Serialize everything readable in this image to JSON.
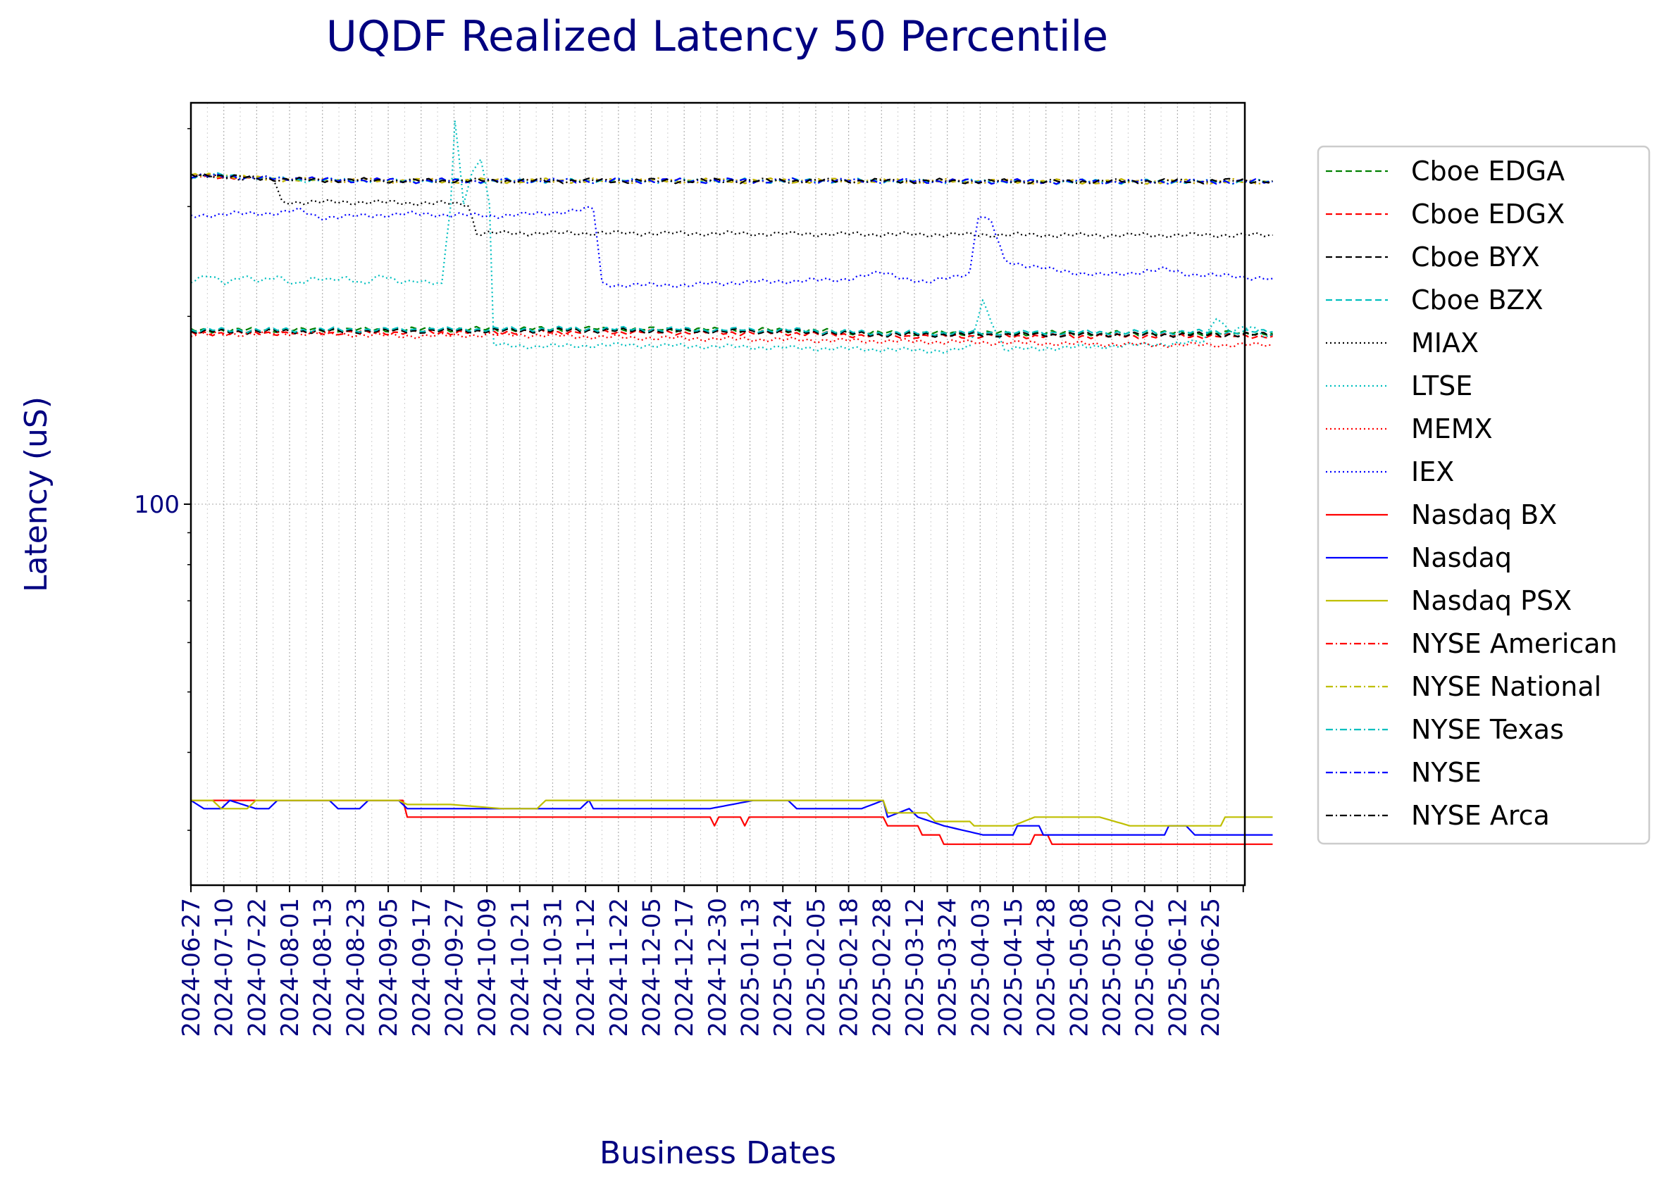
{
  "chart_data": {
    "type": "line",
    "title": "UQDF Realized Latency 50 Percentile",
    "xlabel": "Business Dates",
    "ylabel": "Latency (uS)",
    "yscale": "log",
    "ylim": [
      24.5,
      440
    ],
    "y_ticklabels": [
      {
        "value": 100,
        "label": "100"
      }
    ],
    "grid": true,
    "legend_position": "right-outside",
    "x_ticklabels": [
      "2024-06-27",
      "2024-07-10",
      "2024-07-22",
      "2024-08-01",
      "2024-08-13",
      "2024-08-23",
      "2024-09-05",
      "2024-09-17",
      "2024-09-27",
      "2024-10-09",
      "2024-10-21",
      "2024-10-31",
      "2024-11-12",
      "2024-11-22",
      "2024-12-05",
      "2024-12-17",
      "2024-12-30",
      "2025-01-13",
      "2025-01-24",
      "2025-02-05",
      "2025-02-18",
      "2025-02-28",
      "2025-03-12",
      "2025-03-24",
      "2025-04-03",
      "2025-04-15",
      "2025-04-28",
      "2025-05-08",
      "2025-05-20",
      "2025-06-02",
      "2025-06-12",
      "2025-06-25"
    ],
    "series": [
      {
        "name": "Cboe EDGA",
        "color": "#008000",
        "style": "dashed",
        "points": [
          [
            0,
            190
          ],
          [
            90,
            191
          ],
          [
            140,
            190
          ],
          [
            160,
            188
          ],
          [
            250,
            188
          ]
        ]
      },
      {
        "name": "Cboe EDGX",
        "color": "#ff0000",
        "style": "dashed",
        "points": [
          [
            0,
            188
          ],
          [
            90,
            189
          ],
          [
            140,
            188
          ],
          [
            160,
            186
          ],
          [
            250,
            186
          ]
        ]
      },
      {
        "name": "Cboe BYX",
        "color": "#000000",
        "style": "dashed",
        "points": [
          [
            0,
            189
          ],
          [
            90,
            190
          ],
          [
            140,
            189
          ],
          [
            160,
            187
          ],
          [
            250,
            187
          ]
        ]
      },
      {
        "name": "Cboe BZX",
        "color": "#00bfbf",
        "style": "dashed",
        "points": [
          [
            0,
            190
          ],
          [
            90,
            191
          ],
          [
            140,
            190
          ],
          [
            160,
            188
          ],
          [
            250,
            189
          ]
        ]
      },
      {
        "name": "MIAX",
        "color": "#000000",
        "style": "dotted",
        "points": [
          [
            0,
            335
          ],
          [
            19,
            333
          ],
          [
            21,
            305
          ],
          [
            40,
            305
          ],
          [
            64,
            303
          ],
          [
            66,
            272
          ],
          [
            100,
            272
          ],
          [
            200,
            270
          ],
          [
            250,
            270
          ]
        ]
      },
      {
        "name": "LTSE",
        "color": "#00bfbf",
        "style": "dotted",
        "points": [
          [
            0,
            228
          ],
          [
            4,
            232
          ],
          [
            8,
            226
          ],
          [
            12,
            233
          ],
          [
            16,
            227
          ],
          [
            20,
            231
          ],
          [
            24,
            226
          ],
          [
            28,
            230
          ],
          [
            32,
            228
          ],
          [
            36,
            231
          ],
          [
            40,
            226
          ],
          [
            44,
            232
          ],
          [
            48,
            227
          ],
          [
            52,
            229
          ],
          [
            56,
            226
          ],
          [
            58,
            224
          ],
          [
            60,
            300
          ],
          [
            61,
            410
          ],
          [
            63,
            305
          ],
          [
            65,
            340
          ],
          [
            67,
            360
          ],
          [
            69,
            300
          ],
          [
            70,
            180
          ],
          [
            80,
            179
          ],
          [
            100,
            180
          ],
          [
            120,
            179
          ],
          [
            140,
            178
          ],
          [
            160,
            177
          ],
          [
            175,
            176
          ],
          [
            180,
            178
          ],
          [
            183,
            212
          ],
          [
            186,
            190
          ],
          [
            188,
            177
          ],
          [
            200,
            178
          ],
          [
            220,
            180
          ],
          [
            234,
            182
          ],
          [
            237,
            200
          ],
          [
            240,
            190
          ],
          [
            245,
            192
          ],
          [
            248,
            186
          ],
          [
            250,
            187
          ]
        ]
      },
      {
        "name": "MEMX",
        "color": "#ff0000",
        "style": "dotted",
        "points": [
          [
            0,
            187
          ],
          [
            25,
            188
          ],
          [
            50,
            186
          ],
          [
            75,
            187
          ],
          [
            100,
            185
          ],
          [
            125,
            184
          ],
          [
            150,
            183
          ],
          [
            175,
            182
          ],
          [
            200,
            181
          ],
          [
            225,
            180
          ],
          [
            250,
            180
          ]
        ]
      },
      {
        "name": "IEX",
        "color": "#0000ff",
        "style": "dotted",
        "points": [
          [
            0,
            290
          ],
          [
            10,
            292
          ],
          [
            20,
            293
          ],
          [
            25,
            296
          ],
          [
            30,
            288
          ],
          [
            40,
            290
          ],
          [
            50,
            292
          ],
          [
            60,
            291
          ],
          [
            70,
            290
          ],
          [
            80,
            292
          ],
          [
            90,
            296
          ],
          [
            93,
            298
          ],
          [
            95,
            226
          ],
          [
            100,
            224
          ],
          [
            110,
            225
          ],
          [
            115,
            224
          ],
          [
            120,
            226
          ],
          [
            130,
            227
          ],
          [
            140,
            228
          ],
          [
            150,
            229
          ],
          [
            160,
            235
          ],
          [
            170,
            226
          ],
          [
            175,
            231
          ],
          [
            180,
            235
          ],
          [
            182,
            290
          ],
          [
            185,
            283
          ],
          [
            188,
            246
          ],
          [
            190,
            244
          ],
          [
            195,
            240
          ],
          [
            200,
            237
          ],
          [
            210,
            233
          ],
          [
            215,
            234
          ],
          [
            220,
            236
          ],
          [
            225,
            238
          ],
          [
            230,
            234
          ],
          [
            235,
            233
          ],
          [
            240,
            232
          ],
          [
            245,
            231
          ],
          [
            250,
            230
          ]
        ]
      },
      {
        "name": "Nasdaq BX",
        "color": "#ff0000",
        "style": "solid",
        "points": [
          [
            0,
            33.5
          ],
          [
            49,
            33.5
          ],
          [
            50,
            31.5
          ],
          [
            120,
            31.5
          ],
          [
            121,
            30.5
          ],
          [
            122,
            31.5
          ],
          [
            127,
            31.5
          ],
          [
            128,
            30.5
          ],
          [
            129,
            31.5
          ],
          [
            160,
            31.5
          ],
          [
            161,
            30.5
          ],
          [
            168,
            30.5
          ],
          [
            169,
            29.5
          ],
          [
            173,
            29.5
          ],
          [
            174,
            28.5
          ],
          [
            194,
            28.5
          ],
          [
            195,
            29.5
          ],
          [
            198,
            29.5
          ],
          [
            199,
            28.5
          ],
          [
            250,
            28.5
          ]
        ]
      },
      {
        "name": "Nasdaq",
        "color": "#0000ff",
        "style": "solid",
        "points": [
          [
            0,
            33.5
          ],
          [
            3,
            32.5
          ],
          [
            7,
            32.5
          ],
          [
            9,
            33.5
          ],
          [
            15,
            32.5
          ],
          [
            18,
            32.5
          ],
          [
            20,
            33.5
          ],
          [
            32,
            33.5
          ],
          [
            34,
            32.5
          ],
          [
            39,
            32.5
          ],
          [
            41,
            33.5
          ],
          [
            48,
            33.5
          ],
          [
            50,
            32.5
          ],
          [
            60,
            32.5
          ],
          [
            90,
            32.5
          ],
          [
            92,
            33.5
          ],
          [
            93,
            32.5
          ],
          [
            120,
            32.5
          ],
          [
            130,
            33.5
          ],
          [
            138,
            33.5
          ],
          [
            140,
            32.5
          ],
          [
            150,
            32.5
          ],
          [
            155,
            32.5
          ],
          [
            160,
            33.5
          ],
          [
            161,
            31.5
          ],
          [
            166,
            32.5
          ],
          [
            168,
            31.5
          ],
          [
            174,
            30.5
          ],
          [
            183,
            29.5
          ],
          [
            190,
            29.5
          ],
          [
            191,
            30.5
          ],
          [
            196,
            30.5
          ],
          [
            197,
            29.5
          ],
          [
            225,
            29.5
          ],
          [
            226,
            30.5
          ],
          [
            230,
            30.5
          ],
          [
            232,
            29.5
          ],
          [
            250,
            29.5
          ]
        ]
      },
      {
        "name": "Nasdaq PSX",
        "color": "#bfbf00",
        "style": "solid",
        "points": [
          [
            0,
            33.5
          ],
          [
            5,
            33.5
          ],
          [
            7,
            32.5
          ],
          [
            13,
            32.5
          ],
          [
            15,
            33.5
          ],
          [
            48,
            33.5
          ],
          [
            50,
            33
          ],
          [
            60,
            33
          ],
          [
            72,
            32.5
          ],
          [
            80,
            32.5
          ],
          [
            82,
            33.5
          ],
          [
            100,
            33.5
          ],
          [
            120,
            33.5
          ],
          [
            150,
            33.5
          ],
          [
            160,
            33.5
          ],
          [
            161,
            32
          ],
          [
            170,
            32
          ],
          [
            172,
            31
          ],
          [
            180,
            31
          ],
          [
            181,
            30.5
          ],
          [
            190,
            30.5
          ],
          [
            195,
            31.5
          ],
          [
            210,
            31.5
          ],
          [
            217,
            30.5
          ],
          [
            220,
            30.5
          ],
          [
            238,
            30.5
          ],
          [
            239,
            31.5
          ],
          [
            250,
            31.5
          ]
        ]
      },
      {
        "name": "NYSE American",
        "color": "#ff0000",
        "style": "dashdot",
        "points": [
          [
            0,
            335
          ],
          [
            5,
            336
          ],
          [
            15,
            333
          ],
          [
            25,
            331
          ],
          [
            50,
            330
          ],
          [
            100,
            330
          ],
          [
            150,
            330
          ],
          [
            200,
            329
          ],
          [
            250,
            329
          ]
        ]
      },
      {
        "name": "NYSE National",
        "color": "#bfbf00",
        "style": "dashdot",
        "points": [
          [
            0,
            335
          ],
          [
            5,
            338
          ],
          [
            15,
            333
          ],
          [
            25,
            331
          ],
          [
            50,
            330
          ],
          [
            100,
            330
          ],
          [
            150,
            330
          ],
          [
            200,
            329
          ],
          [
            250,
            329
          ]
        ]
      },
      {
        "name": "NYSE Texas",
        "color": "#00bfbf",
        "style": "dashdot",
        "points": [
          [
            0,
            336
          ],
          [
            5,
            337
          ],
          [
            15,
            334
          ],
          [
            25,
            331
          ],
          [
            50,
            330
          ],
          [
            100,
            330
          ],
          [
            150,
            330
          ],
          [
            200,
            329
          ],
          [
            250,
            329
          ]
        ]
      },
      {
        "name": "NYSE",
        "color": "#0000ff",
        "style": "dashdot",
        "points": [
          [
            0,
            336
          ],
          [
            10,
            335
          ],
          [
            20,
            332
          ],
          [
            27,
            334
          ],
          [
            29,
            331
          ],
          [
            50,
            330
          ],
          [
            100,
            330
          ],
          [
            150,
            330
          ],
          [
            200,
            329
          ],
          [
            250,
            329
          ]
        ]
      },
      {
        "name": "NYSE Arca",
        "color": "#000000",
        "style": "dashdot",
        "points": [
          [
            0,
            336
          ],
          [
            5,
            337
          ],
          [
            15,
            333
          ],
          [
            25,
            331
          ],
          [
            50,
            330
          ],
          [
            100,
            330
          ],
          [
            150,
            330
          ],
          [
            200,
            329
          ],
          [
            250,
            330
          ]
        ]
      }
    ]
  }
}
